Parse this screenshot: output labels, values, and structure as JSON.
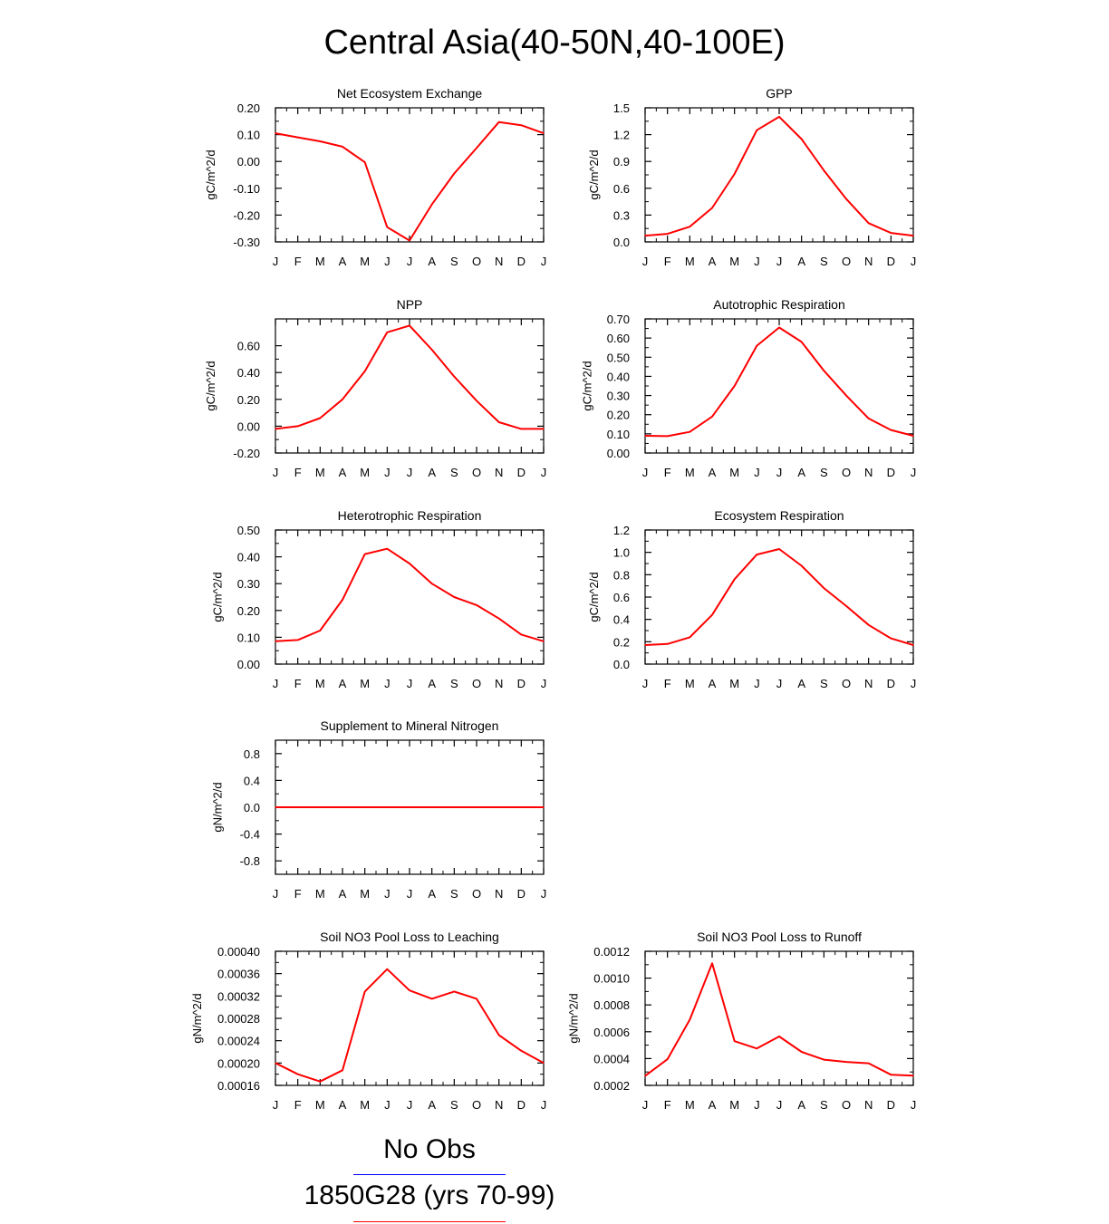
{
  "title": "Central Asia(40-50N,40-100E)",
  "month_labels": [
    "J",
    "F",
    "M",
    "A",
    "M",
    "J",
    "J",
    "A",
    "S",
    "O",
    "N",
    "D",
    "J"
  ],
  "legend": [
    {
      "label": "No Obs",
      "color": "#0000ff"
    },
    {
      "label": "1850G28 (yrs 70-99)",
      "color": "#ff0000"
    }
  ],
  "line_color": "#ff0000",
  "chart_data": [
    {
      "type": "line",
      "title": "Net Ecosystem Exchange",
      "ylabel": "gC/m^2/d",
      "ylim": [
        -0.3,
        0.2
      ],
      "yticks": [
        -0.3,
        -0.2,
        -0.1,
        0.0,
        0.1,
        0.2
      ],
      "ytick_labels": [
        "-0.30",
        "-0.20",
        "-0.10",
        "0.00",
        "0.10",
        "0.20"
      ],
      "series": [
        {
          "values": [
            0.105,
            0.09,
            0.075,
            0.055,
            -0.003,
            -0.245,
            -0.295,
            -0.16,
            -0.045,
            0.05,
            0.147,
            0.135,
            0.105
          ]
        }
      ]
    },
    {
      "type": "line",
      "title": "GPP",
      "ylabel": "gC/m^2/d",
      "ylim": [
        0.0,
        1.5
      ],
      "yticks": [
        0.0,
        0.3,
        0.6,
        0.9,
        1.2,
        1.5
      ],
      "ytick_labels": [
        "0.0",
        "0.3",
        "0.6",
        "0.9",
        "1.2",
        "1.5"
      ],
      "series": [
        {
          "values": [
            0.07,
            0.09,
            0.17,
            0.38,
            0.76,
            1.25,
            1.4,
            1.15,
            0.8,
            0.48,
            0.21,
            0.1,
            0.07
          ]
        }
      ]
    },
    {
      "type": "line",
      "title": "NPP",
      "ylabel": "gC/m^2/d",
      "ylim": [
        -0.2,
        0.8
      ],
      "yticks": [
        -0.2,
        0.0,
        0.2,
        0.4,
        0.6
      ],
      "ytick_labels": [
        "-0.20",
        "0.00",
        "0.20",
        "0.40",
        "0.60"
      ],
      "series": [
        {
          "values": [
            -0.02,
            0.0,
            0.06,
            0.2,
            0.41,
            0.7,
            0.75,
            0.57,
            0.37,
            0.19,
            0.03,
            -0.02,
            -0.02
          ]
        }
      ]
    },
    {
      "type": "line",
      "title": "Autotrophic Respiration",
      "ylabel": "gC/m^2/d",
      "ylim": [
        0.0,
        0.7
      ],
      "yticks": [
        0.0,
        0.1,
        0.2,
        0.3,
        0.4,
        0.5,
        0.6,
        0.7
      ],
      "ytick_labels": [
        "0.00",
        "0.10",
        "0.20",
        "0.30",
        "0.40",
        "0.50",
        "0.60",
        "0.70"
      ],
      "series": [
        {
          "values": [
            0.09,
            0.088,
            0.11,
            0.19,
            0.35,
            0.56,
            0.655,
            0.58,
            0.43,
            0.3,
            0.18,
            0.12,
            0.09
          ]
        }
      ]
    },
    {
      "type": "line",
      "title": "Heterotrophic Respiration",
      "ylabel": "gC/m^2/d",
      "ylim": [
        0.0,
        0.5
      ],
      "yticks": [
        0.0,
        0.1,
        0.2,
        0.3,
        0.4,
        0.5
      ],
      "ytick_labels": [
        "0.00",
        "0.10",
        "0.20",
        "0.30",
        "0.40",
        "0.50"
      ],
      "series": [
        {
          "values": [
            0.085,
            0.09,
            0.125,
            0.24,
            0.41,
            0.43,
            0.375,
            0.3,
            0.25,
            0.22,
            0.17,
            0.11,
            0.085
          ]
        }
      ]
    },
    {
      "type": "line",
      "title": "Ecosystem Respiration",
      "ylabel": "gC/m^2/d",
      "ylim": [
        0.0,
        1.2
      ],
      "yticks": [
        0.0,
        0.2,
        0.4,
        0.6,
        0.8,
        1.0,
        1.2
      ],
      "ytick_labels": [
        "0.0",
        "0.2",
        "0.4",
        "0.6",
        "0.8",
        "1.0",
        "1.2"
      ],
      "series": [
        {
          "values": [
            0.17,
            0.18,
            0.24,
            0.44,
            0.76,
            0.98,
            1.03,
            0.88,
            0.68,
            0.52,
            0.35,
            0.23,
            0.17
          ]
        }
      ]
    },
    {
      "type": "line",
      "title": "Supplement to Mineral Nitrogen",
      "ylabel": "gN/m^2/d",
      "ylim": [
        -1.0,
        1.0
      ],
      "yticks": [
        -0.8,
        -0.4,
        0.0,
        0.4,
        0.8
      ],
      "ytick_labels": [
        "-0.8",
        "-0.4",
        "0.0",
        "0.4",
        "0.8"
      ],
      "series": [
        {
          "values": [
            0,
            0,
            0,
            0,
            0,
            0,
            0,
            0,
            0,
            0,
            0,
            0,
            0
          ]
        }
      ]
    },
    {
      "type": "line",
      "title": "Soil NO3 Pool Loss to Leaching",
      "ylabel": "gN/m^2/d",
      "ylim": [
        0.00016,
        0.0004
      ],
      "yticks": [
        0.00016,
        0.0002,
        0.00024,
        0.00028,
        0.00032,
        0.00036,
        0.0004
      ],
      "ytick_labels": [
        "0.00016",
        "0.00020",
        "0.00024",
        "0.00028",
        "0.00032",
        "0.00036",
        "0.00040"
      ],
      "series": [
        {
          "values": [
            0.0002,
            0.00018,
            0.000167,
            0.000187,
            0.000328,
            0.000368,
            0.00033,
            0.000315,
            0.000328,
            0.000315,
            0.00025,
            0.000222,
            0.0002
          ]
        }
      ]
    },
    {
      "type": "line",
      "title": "Soil NO3 Pool Loss to Runoff",
      "ylabel": "gN/m^2/d",
      "ylim": [
        0.0002,
        0.0012
      ],
      "yticks": [
        0.0002,
        0.0004,
        0.0006,
        0.0008,
        0.001,
        0.0012
      ],
      "ytick_labels": [
        "0.0002",
        "0.0004",
        "0.0006",
        "0.0008",
        "0.0010",
        "0.0012"
      ],
      "series": [
        {
          "values": [
            0.00027,
            0.000395,
            0.00069,
            0.00111,
            0.00053,
            0.000475,
            0.000565,
            0.00045,
            0.000392,
            0.000375,
            0.000365,
            0.00028,
            0.000272
          ]
        }
      ]
    }
  ]
}
